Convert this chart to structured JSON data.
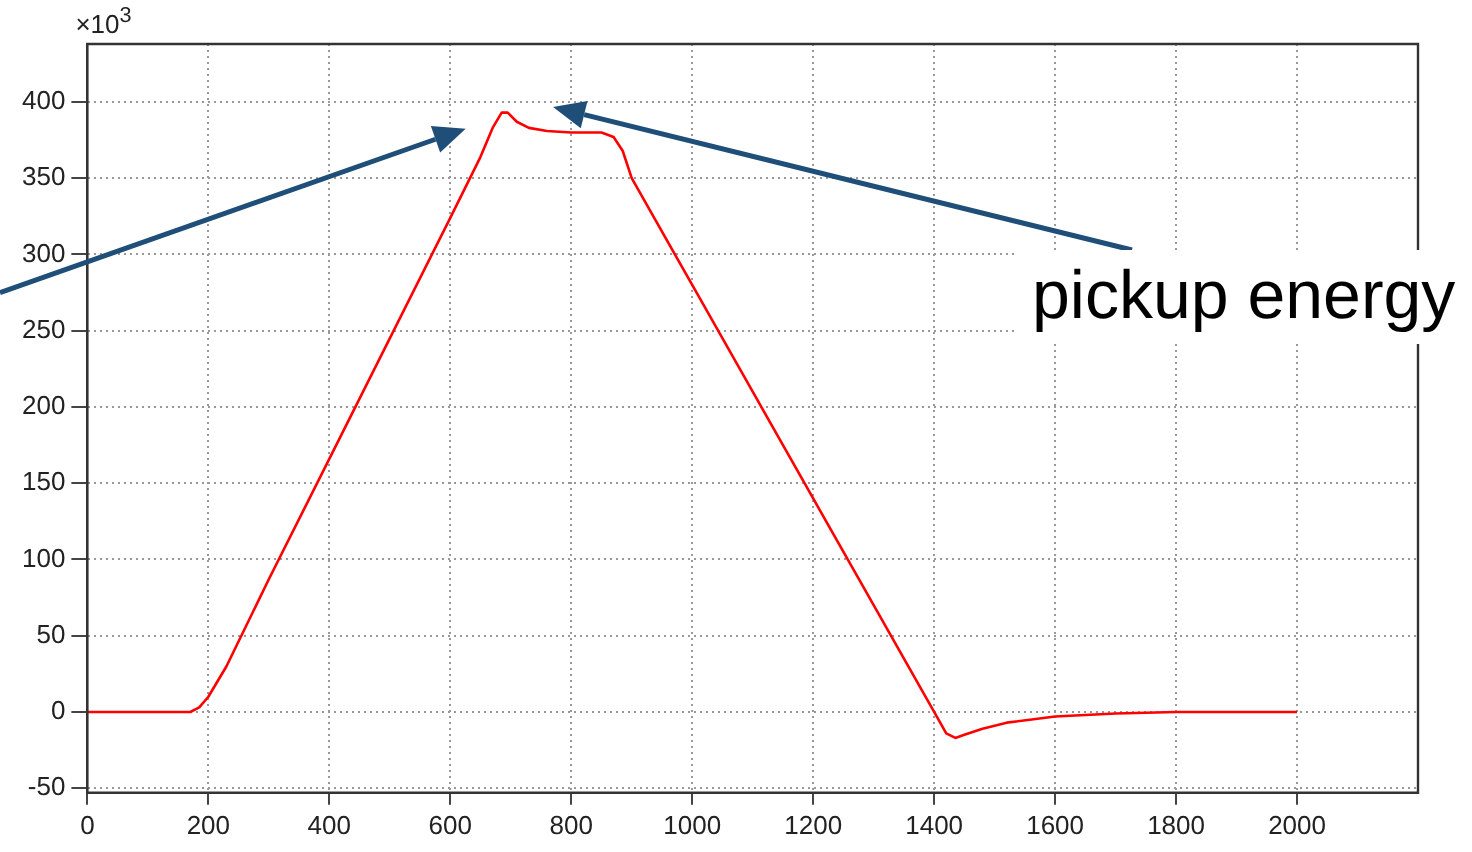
{
  "chart_data": {
    "type": "line",
    "x": [
      0,
      100,
      170,
      185,
      200,
      230,
      300,
      400,
      500,
      600,
      650,
      670,
      685,
      695,
      710,
      730,
      760,
      800,
      850,
      870,
      885,
      900,
      1000,
      1100,
      1200,
      1300,
      1400,
      1420,
      1435,
      1450,
      1480,
      1520,
      1600,
      1700,
      1800,
      1900,
      2000
    ],
    "series": [
      {
        "color": "#ff0000",
        "values": [
          0,
          0,
          0,
          3,
          10,
          30,
          87,
          166,
          245,
          324,
          364,
          383,
          393,
          393,
          387,
          383,
          381,
          380,
          380,
          377,
          368,
          350,
          280,
          210,
          140,
          70,
          0,
          -14,
          -17,
          -15,
          -11,
          -7,
          -3,
          -1,
          0,
          0,
          0
        ]
      }
    ],
    "xlim": [
      0,
      2200
    ],
    "ylim": [
      -53,
      438
    ],
    "xticks": [
      0,
      200,
      400,
      600,
      800,
      1000,
      1200,
      1400,
      1600,
      1800,
      2000
    ],
    "yticks": [
      -50,
      0,
      50,
      100,
      150,
      200,
      250,
      300,
      350,
      400
    ],
    "grid": true,
    "marker": "none",
    "line_style": "solid",
    "annotations": [
      "×10$^{3}$",
      "pickup energy"
    ]
  }
}
